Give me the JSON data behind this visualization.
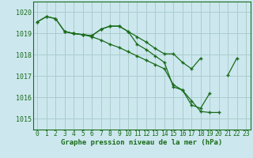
{
  "title": "Graphe pression niveau de la mer (hPa)",
  "bg_color": "#cce8ee",
  "grid_color": "#aacccc",
  "line_color": "#1a6b1a",
  "xlim": [
    -0.5,
    23.5
  ],
  "ylim": [
    1014.5,
    1020.5
  ],
  "yticks": [
    1015,
    1016,
    1017,
    1018,
    1019,
    1020
  ],
  "xticks": [
    0,
    1,
    2,
    3,
    4,
    5,
    6,
    7,
    8,
    9,
    10,
    11,
    12,
    13,
    14,
    15,
    16,
    17,
    18,
    19,
    20,
    21,
    22,
    23
  ],
  "series1": [
    1019.55,
    1019.8,
    1019.7,
    1019.1,
    1019.0,
    1018.95,
    1018.9,
    1019.2,
    1019.35,
    1019.35,
    1019.1,
    1018.85,
    1018.6,
    1018.3,
    1018.05,
    1018.05,
    1017.65,
    1017.35,
    1017.85,
    null,
    null,
    1017.05,
    1017.85,
    null
  ],
  "series2": [
    1019.55,
    1019.8,
    1019.7,
    1019.1,
    1019.0,
    1018.95,
    1018.9,
    1019.2,
    1019.35,
    1019.35,
    1019.1,
    1018.5,
    1018.25,
    1017.95,
    1017.65,
    1016.5,
    1016.35,
    1015.85,
    1015.35,
    1015.3,
    1015.3,
    null,
    null,
    null
  ],
  "series3": [
    null,
    null,
    null,
    1019.1,
    1019.0,
    1018.95,
    1018.85,
    1018.7,
    1018.5,
    1018.35,
    1018.15,
    1017.95,
    1017.75,
    1017.55,
    1017.35,
    1016.6,
    1016.35,
    1015.65,
    1015.5,
    1016.2,
    null,
    null,
    null,
    null
  ],
  "xlabel_fontsize": 6.5,
  "tick_fontsize": 5.8,
  "ylabel_fontsize": 6.0
}
